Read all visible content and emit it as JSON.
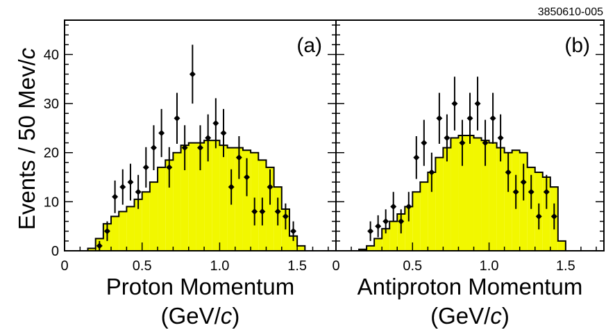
{
  "figure_id": "3850610-005",
  "y_axis_label": "Events / 50 Mev/c",
  "colors": {
    "histogram_fill": "#f2f700",
    "points": "#000000",
    "frame": "#000000"
  },
  "chart_data": [
    {
      "type": "bar",
      "panel_label": "(a)",
      "xlabel_line1": "Proton Momentum",
      "xlabel_line2": "(GeV/c)",
      "ylabel": "Events / 50 Mev/c",
      "xlim": [
        0,
        1.75
      ],
      "ylim": [
        0,
        47
      ],
      "x_ticks": [
        "0",
        "0.5",
        "1.0",
        "1.5"
      ],
      "y_ticks": [
        "0",
        "10",
        "20",
        "30",
        "40"
      ],
      "histogram": {
        "bin_edges": [
          0.15,
          0.2,
          0.25,
          0.3,
          0.35,
          0.4,
          0.45,
          0.5,
          0.55,
          0.6,
          0.65,
          0.7,
          0.75,
          0.8,
          0.85,
          0.9,
          0.95,
          1.0,
          1.05,
          1.1,
          1.15,
          1.2,
          1.25,
          1.3,
          1.35,
          1.4,
          1.45,
          1.5,
          1.55
        ],
        "values": [
          0.5,
          2.5,
          5.5,
          7,
          8,
          9,
          10.5,
          12,
          14,
          17,
          18.5,
          20,
          21.5,
          22,
          22,
          22.5,
          22.5,
          21.5,
          21,
          21,
          20.5,
          20,
          18.5,
          17,
          13,
          8.5,
          3,
          1
        ]
      },
      "points": {
        "x": [
          0.225,
          0.275,
          0.325,
          0.375,
          0.425,
          0.475,
          0.525,
          0.575,
          0.625,
          0.675,
          0.725,
          0.775,
          0.825,
          0.875,
          0.925,
          0.975,
          1.025,
          1.075,
          1.125,
          1.175,
          1.225,
          1.275,
          1.325,
          1.375,
          1.425,
          1.475
        ],
        "y": [
          1,
          4,
          11,
          13,
          14,
          12,
          17,
          21,
          24,
          17,
          27,
          21,
          36,
          21,
          23,
          26,
          24,
          13,
          19,
          15,
          8,
          8,
          13,
          8,
          7,
          4
        ]
      }
    },
    {
      "type": "bar",
      "panel_label": "(b)",
      "xlabel_line1": "Antiproton Momentum",
      "xlabel_line2": "(GeV/c)",
      "ylabel": "",
      "xlim": [
        0,
        1.75
      ],
      "ylim": [
        0,
        47
      ],
      "x_ticks": [
        "0",
        "0.5",
        "1.0",
        "1.5"
      ],
      "y_ticks": [],
      "histogram": {
        "bin_edges": [
          0.15,
          0.2,
          0.25,
          0.3,
          0.35,
          0.4,
          0.45,
          0.5,
          0.55,
          0.6,
          0.65,
          0.7,
          0.75,
          0.8,
          0.85,
          0.9,
          0.95,
          1.0,
          1.05,
          1.1,
          1.15,
          1.2,
          1.25,
          1.3,
          1.35,
          1.4,
          1.45,
          1.5
        ],
        "values": [
          0.3,
          1,
          2.5,
          4.5,
          6,
          7.5,
          9,
          12,
          14,
          16,
          19,
          21,
          23,
          23.5,
          23.5,
          23,
          22.5,
          22,
          21,
          20,
          20.5,
          20,
          17,
          16,
          15,
          13,
          2
        ]
      },
      "points": {
        "x": [
          0.225,
          0.275,
          0.325,
          0.375,
          0.425,
          0.475,
          0.525,
          0.575,
          0.625,
          0.675,
          0.725,
          0.775,
          0.825,
          0.875,
          0.925,
          0.975,
          1.025,
          1.075,
          1.125,
          1.175,
          1.225,
          1.275,
          1.325,
          1.375,
          1.425
        ],
        "y": [
          4,
          5,
          6,
          9,
          6,
          9,
          19,
          22,
          16,
          27,
          23,
          30,
          22,
          27,
          30,
          22,
          27,
          23,
          16,
          12,
          14,
          12,
          7,
          12,
          7
        ]
      }
    }
  ]
}
